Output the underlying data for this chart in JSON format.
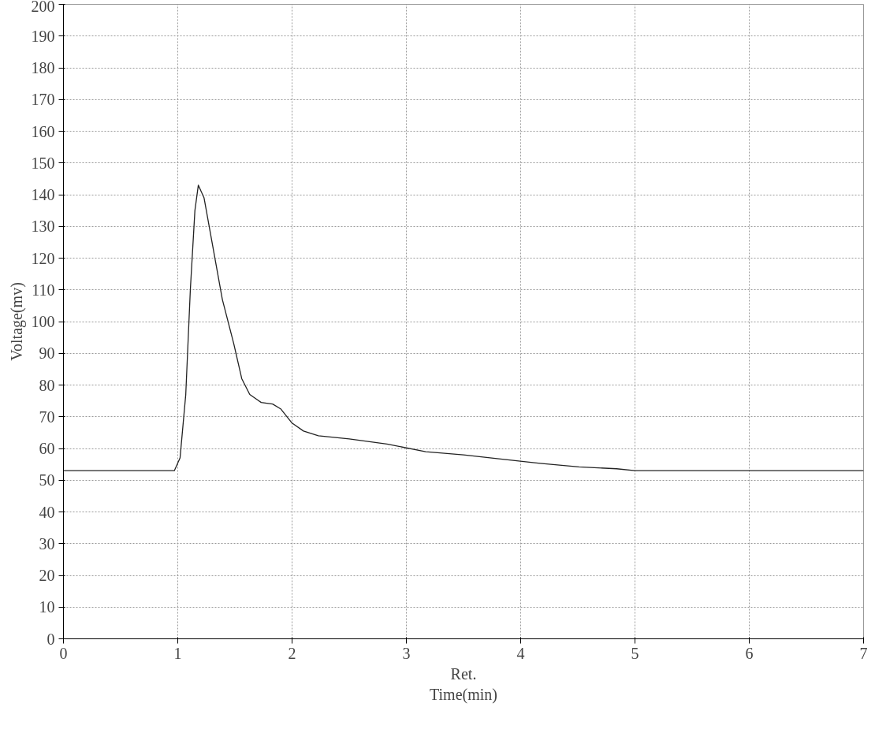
{
  "chart_data": {
    "type": "line",
    "xlabel": "Ret.\nTime(min)",
    "ylabel": "Voltage(mv)",
    "xlim": [
      0,
      7
    ],
    "xticks": [
      0,
      1,
      2,
      3,
      4,
      5,
      6,
      7
    ],
    "ylim": [
      0,
      200
    ],
    "yticks": [
      0,
      10,
      20,
      30,
      40,
      50,
      60,
      70,
      80,
      90,
      100,
      110,
      120,
      130,
      140,
      150,
      160,
      170,
      180,
      190,
      200
    ],
    "grid": true,
    "marker": "none",
    "line_style": "solid",
    "series": [
      {
        "color": "#222222",
        "x": [
          0,
          0.5,
          0.97,
          1.02,
          1.07,
          1.11,
          1.15,
          1.18,
          1.23,
          1.29,
          1.39,
          1.49,
          1.56,
          1.63,
          1.73,
          1.83,
          1.9,
          2.0,
          2.1,
          2.23,
          2.5,
          2.83,
          3.17,
          3.5,
          3.84,
          4.17,
          4.51,
          4.84,
          5.0,
          6.0,
          7.0
        ],
        "values": [
          53,
          53,
          53,
          57,
          77,
          110,
          135,
          143,
          139,
          127,
          107,
          93,
          82,
          77,
          74.5,
          74,
          72.5,
          68,
          65.5,
          64,
          63,
          61.4,
          59,
          58,
          56.6,
          55.3,
          54.2,
          53.6,
          53,
          53,
          53
        ]
      }
    ]
  }
}
